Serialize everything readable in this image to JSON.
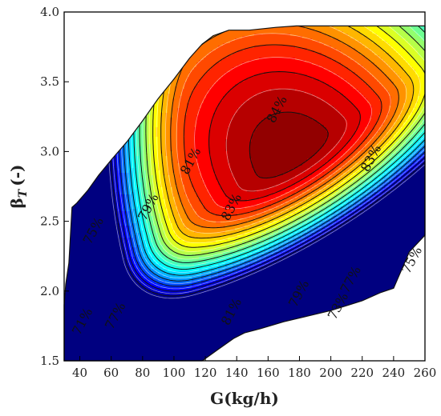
{
  "chart_data": {
    "type": "contour",
    "title": "",
    "xlabel": "G(kg/h)",
    "ylabel": "βT (-)",
    "ylabel_symbol": "β",
    "ylabel_subscript": "T",
    "ylabel_unit": "(-)",
    "xlim": [
      30,
      260
    ],
    "ylim": [
      1.5,
      4.0
    ],
    "x_ticks": [
      40,
      60,
      80,
      100,
      120,
      140,
      160,
      180,
      200,
      220,
      240,
      260
    ],
    "y_ticks": [
      "1.5",
      "2.0",
      "2.5",
      "3.0",
      "3.5",
      "4.0"
    ],
    "grid": false,
    "colormap": "jet (blue to red)",
    "efficiency_levels": [
      71,
      72,
      73,
      74,
      75,
      76,
      77,
      78,
      79,
      80,
      81,
      82,
      83,
      84
    ],
    "labeled_contours": [
      {
        "label": "71%",
        "x": 42,
        "y": 1.78
      },
      {
        "label": "75%",
        "x": 49,
        "y": 2.43
      },
      {
        "label": "77%",
        "x": 63,
        "y": 1.82
      },
      {
        "label": "79%",
        "x": 84,
        "y": 2.6
      },
      {
        "label": "81%",
        "x": 111,
        "y": 2.93
      },
      {
        "label": "83%",
        "x": 137,
        "y": 2.6
      },
      {
        "label": "84%",
        "x": 166,
        "y": 3.3
      },
      {
        "label": "83%",
        "x": 226,
        "y": 2.95
      },
      {
        "label": "81%",
        "x": 137,
        "y": 1.85
      },
      {
        "label": "79%",
        "x": 180,
        "y": 1.98
      },
      {
        "label": "77%",
        "x": 213,
        "y": 2.08
      },
      {
        "label": "75%",
        "x": 252,
        "y": 2.22
      },
      {
        "label": "73%",
        "x": 205,
        "y": 1.89
      }
    ]
  }
}
